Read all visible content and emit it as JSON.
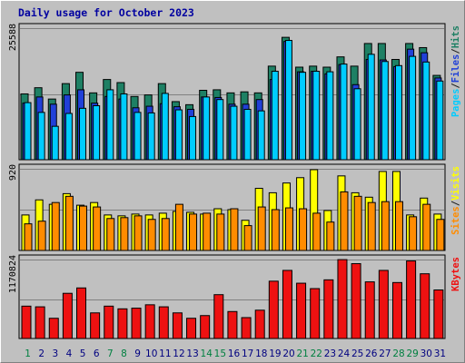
{
  "title": "Daily usage for October 2023",
  "colors": {
    "background": "#c0c0c0",
    "title": "#0000a0",
    "hits": "#1e8064",
    "files": "#2040d8",
    "pages": "#00ccff",
    "visits": "#ffff00",
    "sites": "#ff8c00",
    "kbytes": "#ee1111",
    "weekend_day": "#008040",
    "weekday": "#000080"
  },
  "chart_data": [
    {
      "type": "bar",
      "name": "hits-files-pages",
      "ymax_label": "25588",
      "ymax": 25588,
      "legend": [
        "Pages",
        "/",
        "Files",
        "/",
        "Hits"
      ],
      "categories": [
        "1",
        "2",
        "3",
        "4",
        "5",
        "6",
        "7",
        "8",
        "9",
        "10",
        "11",
        "12",
        "13",
        "14",
        "15",
        "16",
        "17",
        "18",
        "19",
        "20",
        "21",
        "22",
        "23",
        "24",
        "25",
        "26",
        "27",
        "28",
        "29",
        "30",
        "31"
      ],
      "series": [
        {
          "name": "Hits",
          "values": [
            12800,
            14000,
            11800,
            14800,
            17000,
            13000,
            15600,
            15000,
            12300,
            12600,
            14800,
            11300,
            10700,
            13500,
            13600,
            13000,
            13200,
            13000,
            18200,
            23800,
            18000,
            18200,
            18000,
            20000,
            18200,
            22600,
            22600,
            19500,
            22600,
            21800,
            16400
          ]
        },
        {
          "name": "Files",
          "values": [
            11000,
            12200,
            10800,
            12600,
            13600,
            11000,
            12300,
            11800,
            10100,
            10400,
            10900,
            10300,
            9800,
            12200,
            12100,
            10800,
            10800,
            11700,
            15600,
            23000,
            17100,
            17200,
            16700,
            18500,
            14600,
            19500,
            19400,
            18100,
            21500,
            20800,
            15900
          ]
        },
        {
          "name": "Pages",
          "values": [
            11100,
            9200,
            6500,
            9000,
            10000,
            10500,
            13600,
            12800,
            9200,
            9100,
            12900,
            9700,
            8400,
            12200,
            11700,
            10400,
            9800,
            9500,
            17200,
            23200,
            17000,
            17200,
            17100,
            18600,
            13800,
            20500,
            19100,
            18300,
            20100,
            19000,
            15300
          ]
        }
      ]
    },
    {
      "type": "bar",
      "name": "visits-sites",
      "ymax_label": "920",
      "ymax": 920,
      "legend": [
        "Sites",
        "/",
        "Visits"
      ],
      "categories": [
        "1",
        "2",
        "3",
        "4",
        "5",
        "6",
        "7",
        "8",
        "9",
        "10",
        "11",
        "12",
        "13",
        "14",
        "15",
        "16",
        "17",
        "18",
        "19",
        "20",
        "21",
        "22",
        "23",
        "24",
        "25",
        "26",
        "27",
        "28",
        "29",
        "30",
        "31"
      ],
      "series": [
        {
          "name": "Visits",
          "values": [
            400,
            570,
            520,
            640,
            510,
            540,
            400,
            390,
            410,
            400,
            420,
            440,
            430,
            410,
            470,
            460,
            340,
            700,
            650,
            760,
            820,
            910,
            450,
            840,
            650,
            600,
            890,
            890,
            400,
            590,
            410
          ]
        },
        {
          "name": "Sites",
          "values": [
            300,
            330,
            540,
            610,
            500,
            490,
            360,
            370,
            390,
            350,
            360,
            520,
            410,
            420,
            410,
            470,
            280,
            490,
            460,
            480,
            470,
            420,
            320,
            660,
            610,
            540,
            550,
            550,
            380,
            520,
            350
          ]
        }
      ]
    },
    {
      "type": "bar",
      "name": "kbytes",
      "ymax_label": "1170824",
      "ymax": 1170824,
      "legend": [
        "KBytes"
      ],
      "categories": [
        "1",
        "2",
        "3",
        "4",
        "5",
        "6",
        "7",
        "8",
        "9",
        "10",
        "11",
        "12",
        "13",
        "14",
        "15",
        "16",
        "17",
        "18",
        "19",
        "20",
        "21",
        "22",
        "23",
        "24",
        "25",
        "26",
        "27",
        "28",
        "29",
        "30",
        "31"
      ],
      "series": [
        {
          "name": "KBytes",
          "values": [
            480000,
            470000,
            300000,
            670000,
            750000,
            380000,
            480000,
            440000,
            450000,
            500000,
            470000,
            380000,
            300000,
            340000,
            650000,
            400000,
            310000,
            420000,
            850000,
            1010000,
            820000,
            740000,
            870000,
            1170000,
            1110000,
            840000,
            1010000,
            830000,
            1150000,
            960000,
            720000
          ]
        }
      ]
    }
  ]
}
